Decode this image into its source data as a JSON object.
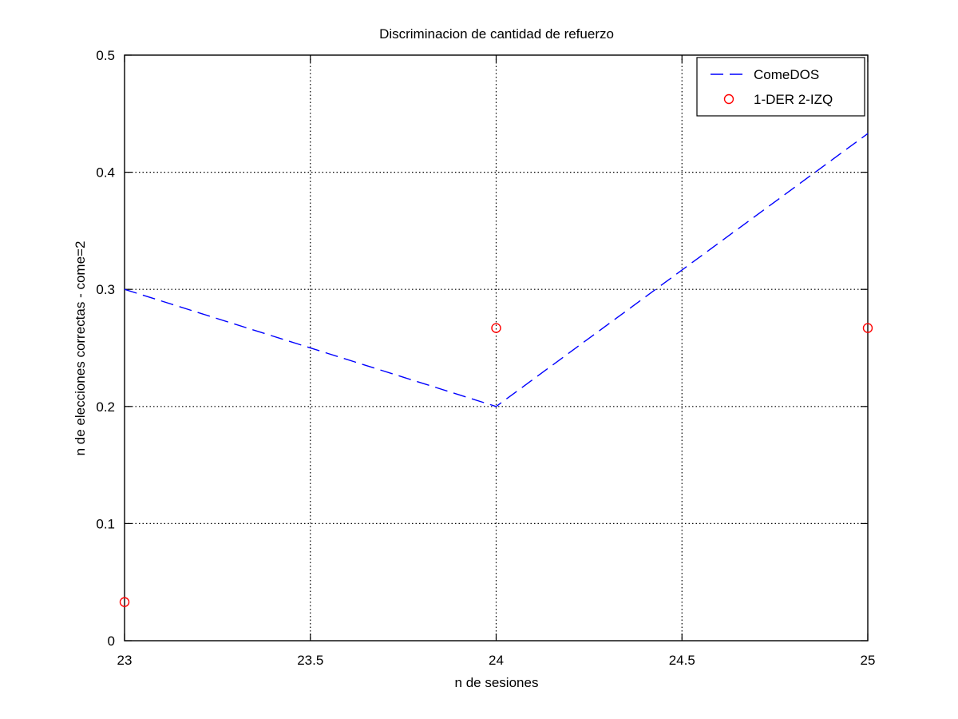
{
  "chart_data": {
    "type": "line",
    "title": "Discriminacion de cantidad de refuerzo",
    "xlabel": "n de sesiones",
    "ylabel": "n de elecciones correctas - come=2",
    "xlim": [
      23,
      25
    ],
    "ylim": [
      0,
      0.5
    ],
    "xticks": [
      23,
      23.5,
      24,
      24.5,
      25
    ],
    "yticks": [
      0,
      0.1,
      0.2,
      0.3,
      0.4,
      0.5
    ],
    "xtick_labels": [
      "23",
      "23.5",
      "24",
      "24.5",
      "25"
    ],
    "ytick_labels": [
      "0",
      "0.1",
      "0.2",
      "0.3",
      "0.4",
      "0.5"
    ],
    "grid": true,
    "legend_position": "top-right",
    "series": [
      {
        "name": "ComeDOS",
        "style": "dashed-line",
        "color": "#0000ff",
        "x": [
          23,
          24,
          25
        ],
        "y": [
          0.3,
          0.2,
          0.433
        ]
      },
      {
        "name": "1-DER 2-IZQ",
        "style": "circle-markers",
        "color": "#ff0000",
        "x": [
          23,
          24,
          25
        ],
        "y": [
          0.033,
          0.267,
          0.267
        ]
      }
    ]
  }
}
